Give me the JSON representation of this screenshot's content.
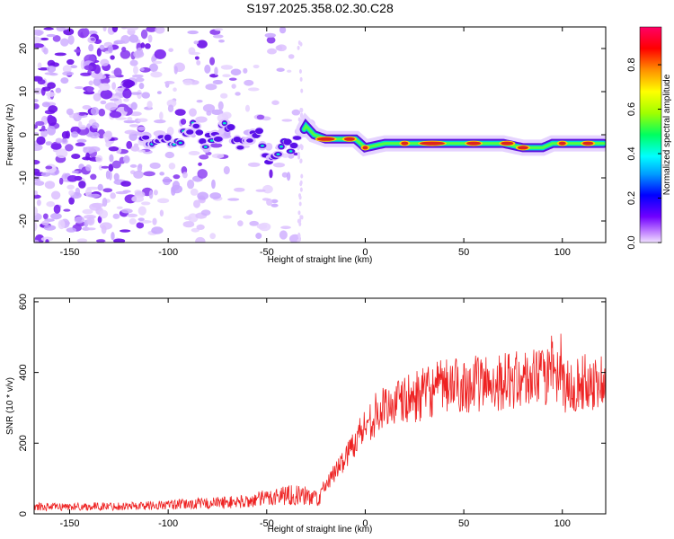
{
  "title": "S197.2025.358.02.30.C28",
  "colors": {
    "snr_line": "#ee2222",
    "ridge_band": "#dd2222"
  },
  "chart_data": [
    {
      "type": "heatmap",
      "xlabel": "Height of straight line (km)",
      "ylabel": "Frequency (Hz)",
      "xlim": [
        -168,
        122
      ],
      "ylim": [
        -25,
        25
      ],
      "xticks": [
        -150,
        -100,
        -50,
        0,
        50,
        100
      ],
      "yticks": [
        -20,
        -10,
        0,
        10,
        20
      ],
      "ridge": {
        "x": [
          -113,
          -105,
          -100,
          -95,
          -90,
          -86,
          -82,
          -78,
          -74,
          -70,
          -66,
          -62,
          -58,
          -54,
          -50,
          -46,
          -42,
          -38,
          -34,
          -30,
          -26,
          -20,
          -15,
          -10,
          -5,
          0,
          10,
          20,
          30,
          40,
          50,
          60,
          70,
          80,
          85,
          90,
          95,
          100,
          110,
          120
        ],
        "y": [
          -2,
          -2,
          -2,
          -1,
          0,
          2,
          -2,
          -1,
          0,
          3,
          -1,
          -2,
          -1,
          0,
          -6,
          -4,
          -2,
          -3,
          -1,
          2,
          0,
          -1,
          -1,
          -1,
          -1,
          -3,
          -2,
          -2,
          -2,
          -2,
          -2,
          -2,
          -2,
          -3,
          -3,
          -3,
          -2,
          -2,
          -2,
          -2
        ]
      }
    },
    {
      "type": "line",
      "xlabel": "Height of straight line (km)",
      "ylabel": "SNR (10 * v/v)",
      "xlim": [
        -168,
        122
      ],
      "ylim": [
        0,
        610
      ],
      "xticks": [
        -150,
        -100,
        -50,
        0,
        50,
        100
      ],
      "yticks": [
        0,
        200,
        400,
        600
      ],
      "trend": {
        "x": [
          -168,
          -150,
          -120,
          -100,
          -80,
          -60,
          -50,
          -40,
          -30,
          -22,
          -20,
          -15,
          -10,
          -5,
          0,
          5,
          10,
          20,
          30,
          40,
          50,
          60,
          70,
          80,
          90,
          95,
          100,
          110,
          122
        ],
        "y": [
          20,
          20,
          22,
          25,
          30,
          35,
          45,
          55,
          50,
          45,
          80,
          120,
          160,
          210,
          250,
          280,
          300,
          320,
          340,
          360,
          365,
          370,
          375,
          380,
          385,
          400,
          360,
          370,
          375
        ]
      }
    }
  ],
  "colorbar": {
    "label": "Normalized spectral amplitude",
    "ticks": [
      "0.0",
      "0.2",
      "0.4",
      "0.6",
      "0.8"
    ],
    "tick_values": [
      0,
      0.2,
      0.4,
      0.6,
      0.8
    ],
    "range": [
      0,
      0.97
    ]
  }
}
